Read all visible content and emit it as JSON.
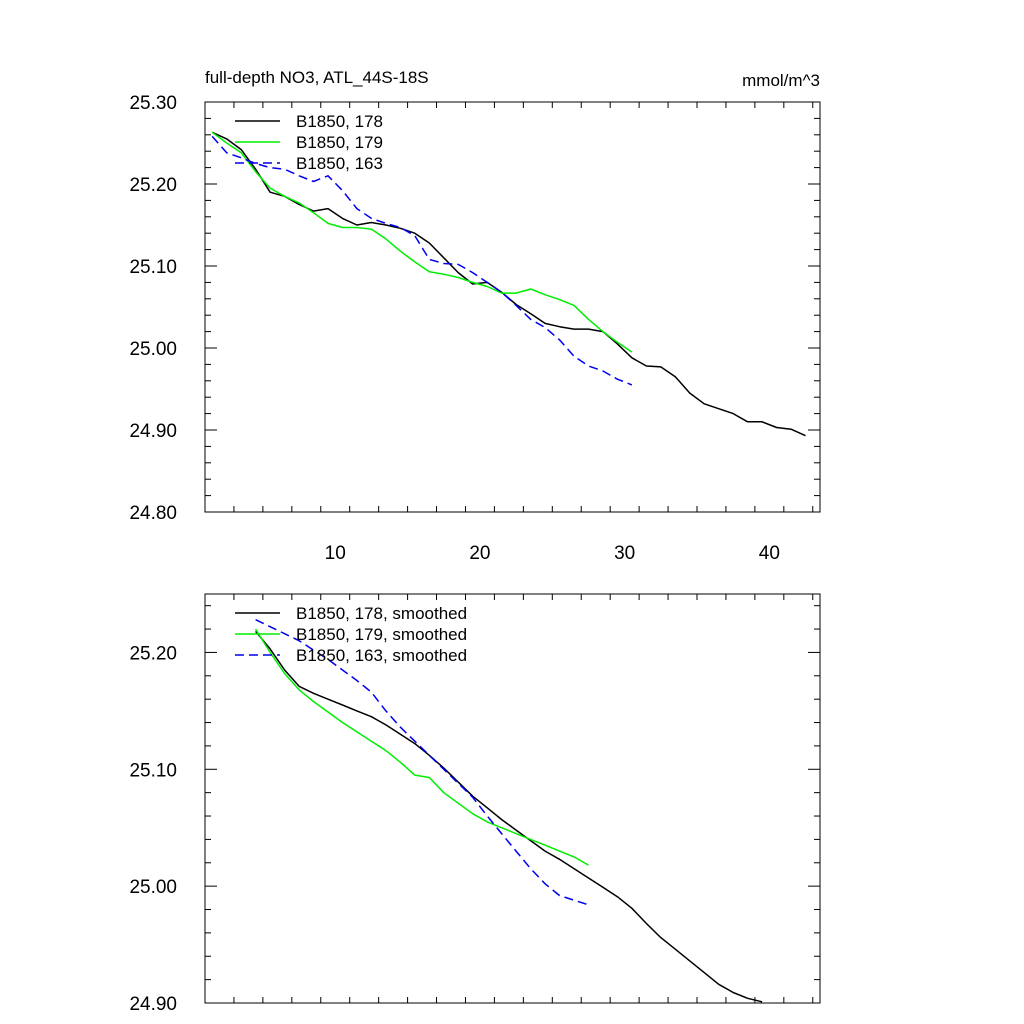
{
  "chart_data": [
    {
      "type": "line",
      "title": "full-depth NO3, ATL_44S-18S",
      "units_label": "mmol/m^3",
      "xlim": [
        1,
        43.5
      ],
      "ylim": [
        24.8,
        25.3
      ],
      "x_ticks": [
        10,
        20,
        30,
        40
      ],
      "x_tick_labels": [
        "10",
        "20",
        "30",
        "40"
      ],
      "y_ticks": [
        24.8,
        24.9,
        25.0,
        25.1,
        25.2,
        25.3
      ],
      "y_tick_labels": [
        "24.80",
        "24.90",
        "25.00",
        "25.10",
        "25.20",
        "25.30"
      ],
      "legend_position": "top-left",
      "series": [
        {
          "name": "B1850, 178",
          "color": "#000000",
          "dash": "solid",
          "x": [
            1.5,
            2.5,
            3.5,
            4.5,
            5.5,
            6.5,
            7.5,
            8.5,
            9.5,
            10.5,
            11.5,
            12.5,
            13.5,
            14.5,
            15.5,
            16.5,
            17.5,
            18.5,
            19.5,
            20.5,
            21.5,
            22.5,
            23.5,
            24.5,
            25.5,
            26.5,
            27.5,
            28.5,
            29.5,
            30.5,
            31.5,
            32.5,
            33.5,
            34.5,
            35.5,
            36.5,
            37.5,
            38.5,
            39.5,
            40.5,
            41.5,
            42.5
          ],
          "y": [
            25.263,
            25.255,
            25.242,
            25.218,
            25.19,
            25.185,
            25.175,
            25.167,
            25.17,
            25.158,
            25.15,
            25.153,
            25.15,
            25.146,
            25.14,
            25.128,
            25.11,
            25.092,
            25.078,
            25.08,
            25.068,
            25.053,
            25.042,
            25.03,
            25.026,
            25.023,
            25.023,
            25.02,
            25.005,
            24.988,
            24.978,
            24.977,
            24.965,
            24.945,
            24.932,
            24.926,
            24.92,
            24.91,
            24.91,
            24.903,
            24.901,
            24.893
          ]
        },
        {
          "name": "B1850, 179",
          "color": "#00ee00",
          "dash": "solid",
          "x": [
            1.5,
            2.5,
            3.5,
            4.5,
            5.5,
            6.5,
            7.5,
            8.5,
            9.5,
            10.5,
            11.5,
            12.5,
            13.5,
            14.5,
            15.5,
            16.5,
            17.5,
            18.5,
            19.5,
            20.5,
            21.5,
            22.5,
            23.5,
            24.5,
            25.5,
            26.5,
            27.5,
            28.5,
            29.5,
            30.5
          ],
          "y": [
            25.263,
            25.25,
            25.238,
            25.215,
            25.195,
            25.185,
            25.177,
            25.165,
            25.152,
            25.147,
            25.147,
            25.145,
            25.133,
            25.118,
            25.105,
            25.093,
            25.09,
            25.086,
            25.08,
            25.075,
            25.067,
            25.067,
            25.072,
            25.065,
            25.059,
            25.052,
            25.035,
            25.02,
            25.007,
            24.995
          ]
        },
        {
          "name": "B1850, 163",
          "color": "#0000ee",
          "dash": "dashed",
          "x": [
            1.5,
            2.5,
            3.5,
            4.5,
            5.5,
            6.5,
            7.5,
            8.5,
            9.5,
            10.5,
            11.5,
            12.5,
            13.5,
            14.5,
            15.5,
            16.5,
            17.5,
            18.5,
            19.5,
            20.5,
            21.5,
            22.5,
            23.5,
            24.5,
            25.5,
            26.5,
            27.5,
            28.5,
            29.5,
            30.5
          ],
          "y": [
            25.258,
            25.238,
            25.232,
            25.225,
            25.22,
            25.218,
            25.21,
            25.203,
            25.21,
            25.192,
            25.17,
            25.158,
            25.152,
            25.147,
            25.137,
            25.108,
            25.103,
            25.102,
            25.092,
            25.08,
            25.068,
            25.052,
            25.035,
            25.025,
            25.01,
            24.99,
            24.978,
            24.972,
            24.962,
            24.955
          ]
        }
      ]
    },
    {
      "type": "line",
      "xlim": [
        1,
        43.5
      ],
      "ylim": [
        24.9,
        25.25
      ],
      "x_ticks": [
        10,
        20,
        30,
        40
      ],
      "y_ticks": [
        24.9,
        25.0,
        25.1,
        25.2
      ],
      "y_tick_labels": [
        "24.90",
        "25.00",
        "25.10",
        "25.20"
      ],
      "legend_position": "top-left",
      "series": [
        {
          "name": "B1850, 178, smoothed",
          "color": "#000000",
          "dash": "solid",
          "x": [
            4.5,
            5.5,
            6.5,
            7.5,
            8.5,
            9.5,
            10.5,
            11.5,
            12.5,
            13.5,
            14.5,
            15.5,
            16.5,
            17.5,
            18.5,
            19.5,
            20.5,
            21.5,
            22.5,
            23.5,
            24.5,
            25.5,
            26.5,
            27.5,
            28.5,
            29.5,
            30.5,
            31.5,
            32.5,
            33.5,
            34.5,
            35.5,
            36.5,
            37.5,
            38.5,
            39.5
          ],
          "y": [
            25.218,
            25.203,
            25.185,
            25.171,
            25.165,
            25.16,
            25.155,
            25.15,
            25.145,
            25.138,
            25.13,
            25.122,
            25.112,
            25.101,
            25.089,
            25.077,
            25.067,
            25.057,
            25.048,
            25.039,
            25.03,
            25.023,
            25.015,
            25.007,
            24.999,
            24.991,
            24.981,
            24.968,
            24.956,
            24.946,
            24.936,
            24.926,
            24.916,
            24.909,
            24.904,
            24.901
          ]
        },
        {
          "name": "B1850, 179, smoothed",
          "color": "#00ee00",
          "dash": "solid",
          "x": [
            4.5,
            5.5,
            6.5,
            7.5,
            8.5,
            9.5,
            10.5,
            11.5,
            12.5,
            13.5,
            14.5,
            15.5,
            16.5,
            17.5,
            18.5,
            19.5,
            20.5,
            21.5,
            22.5,
            23.5,
            24.5,
            25.5,
            26.5,
            27.5
          ],
          "y": [
            25.22,
            25.2,
            25.182,
            25.168,
            25.158,
            25.149,
            25.14,
            25.132,
            25.124,
            25.116,
            25.106,
            25.095,
            25.093,
            25.08,
            25.071,
            25.062,
            25.055,
            25.05,
            25.045,
            25.04,
            25.035,
            25.03,
            25.025,
            25.018
          ]
        },
        {
          "name": "B1850, 163, smoothed",
          "color": "#0000ee",
          "dash": "dashed",
          "x": [
            4.5,
            5.5,
            6.5,
            7.5,
            8.5,
            9.5,
            10.5,
            11.5,
            12.5,
            13.5,
            14.5,
            15.5,
            16.5,
            17.5,
            18.5,
            19.5,
            20.5,
            21.5,
            22.5,
            23.5,
            24.5,
            25.5,
            26.5,
            27.5
          ],
          "y": [
            25.228,
            25.222,
            25.216,
            25.21,
            25.202,
            25.194,
            25.185,
            25.176,
            25.166,
            25.15,
            25.136,
            25.124,
            25.112,
            25.1,
            25.088,
            25.076,
            25.06,
            25.045,
            25.03,
            25.015,
            25.002,
            24.992,
            24.988,
            24.984
          ]
        }
      ]
    }
  ]
}
